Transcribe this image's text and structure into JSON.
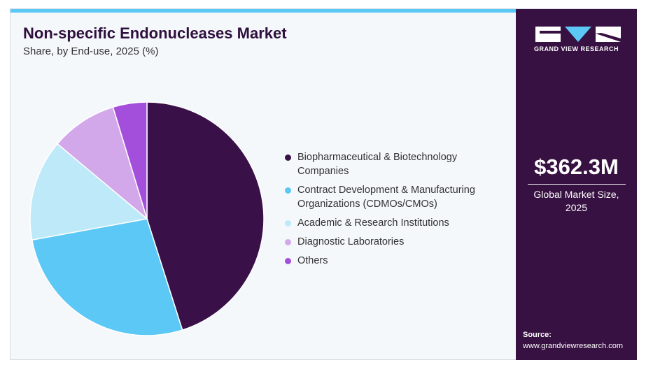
{
  "chart_data": {
    "type": "pie",
    "title": "Non-specific Endonucleases Market",
    "subtitle": "Share, by End-use, 2025 (%)",
    "categories": [
      "Biopharmaceutical & Biotechnology Companies",
      "Contract Development & Manufacturing Organizations (CDMOs/CMOs)",
      "Academic & Research Institutions",
      "Diagnostic Laboratories",
      "Others"
    ],
    "values": [
      45.1,
      27.0,
      14.0,
      9.2,
      4.7
    ],
    "colors": [
      "#3a1049",
      "#5bc8f5",
      "#bde9f9",
      "#d3a8ea",
      "#a44fdc"
    ]
  },
  "sidebar": {
    "brand": "GRAND VIEW RESEARCH",
    "stat": "$362.3M",
    "stat_label": "Global Market Size, 2025",
    "source_label": "Source:",
    "source": "www.grandviewresearch.com"
  }
}
